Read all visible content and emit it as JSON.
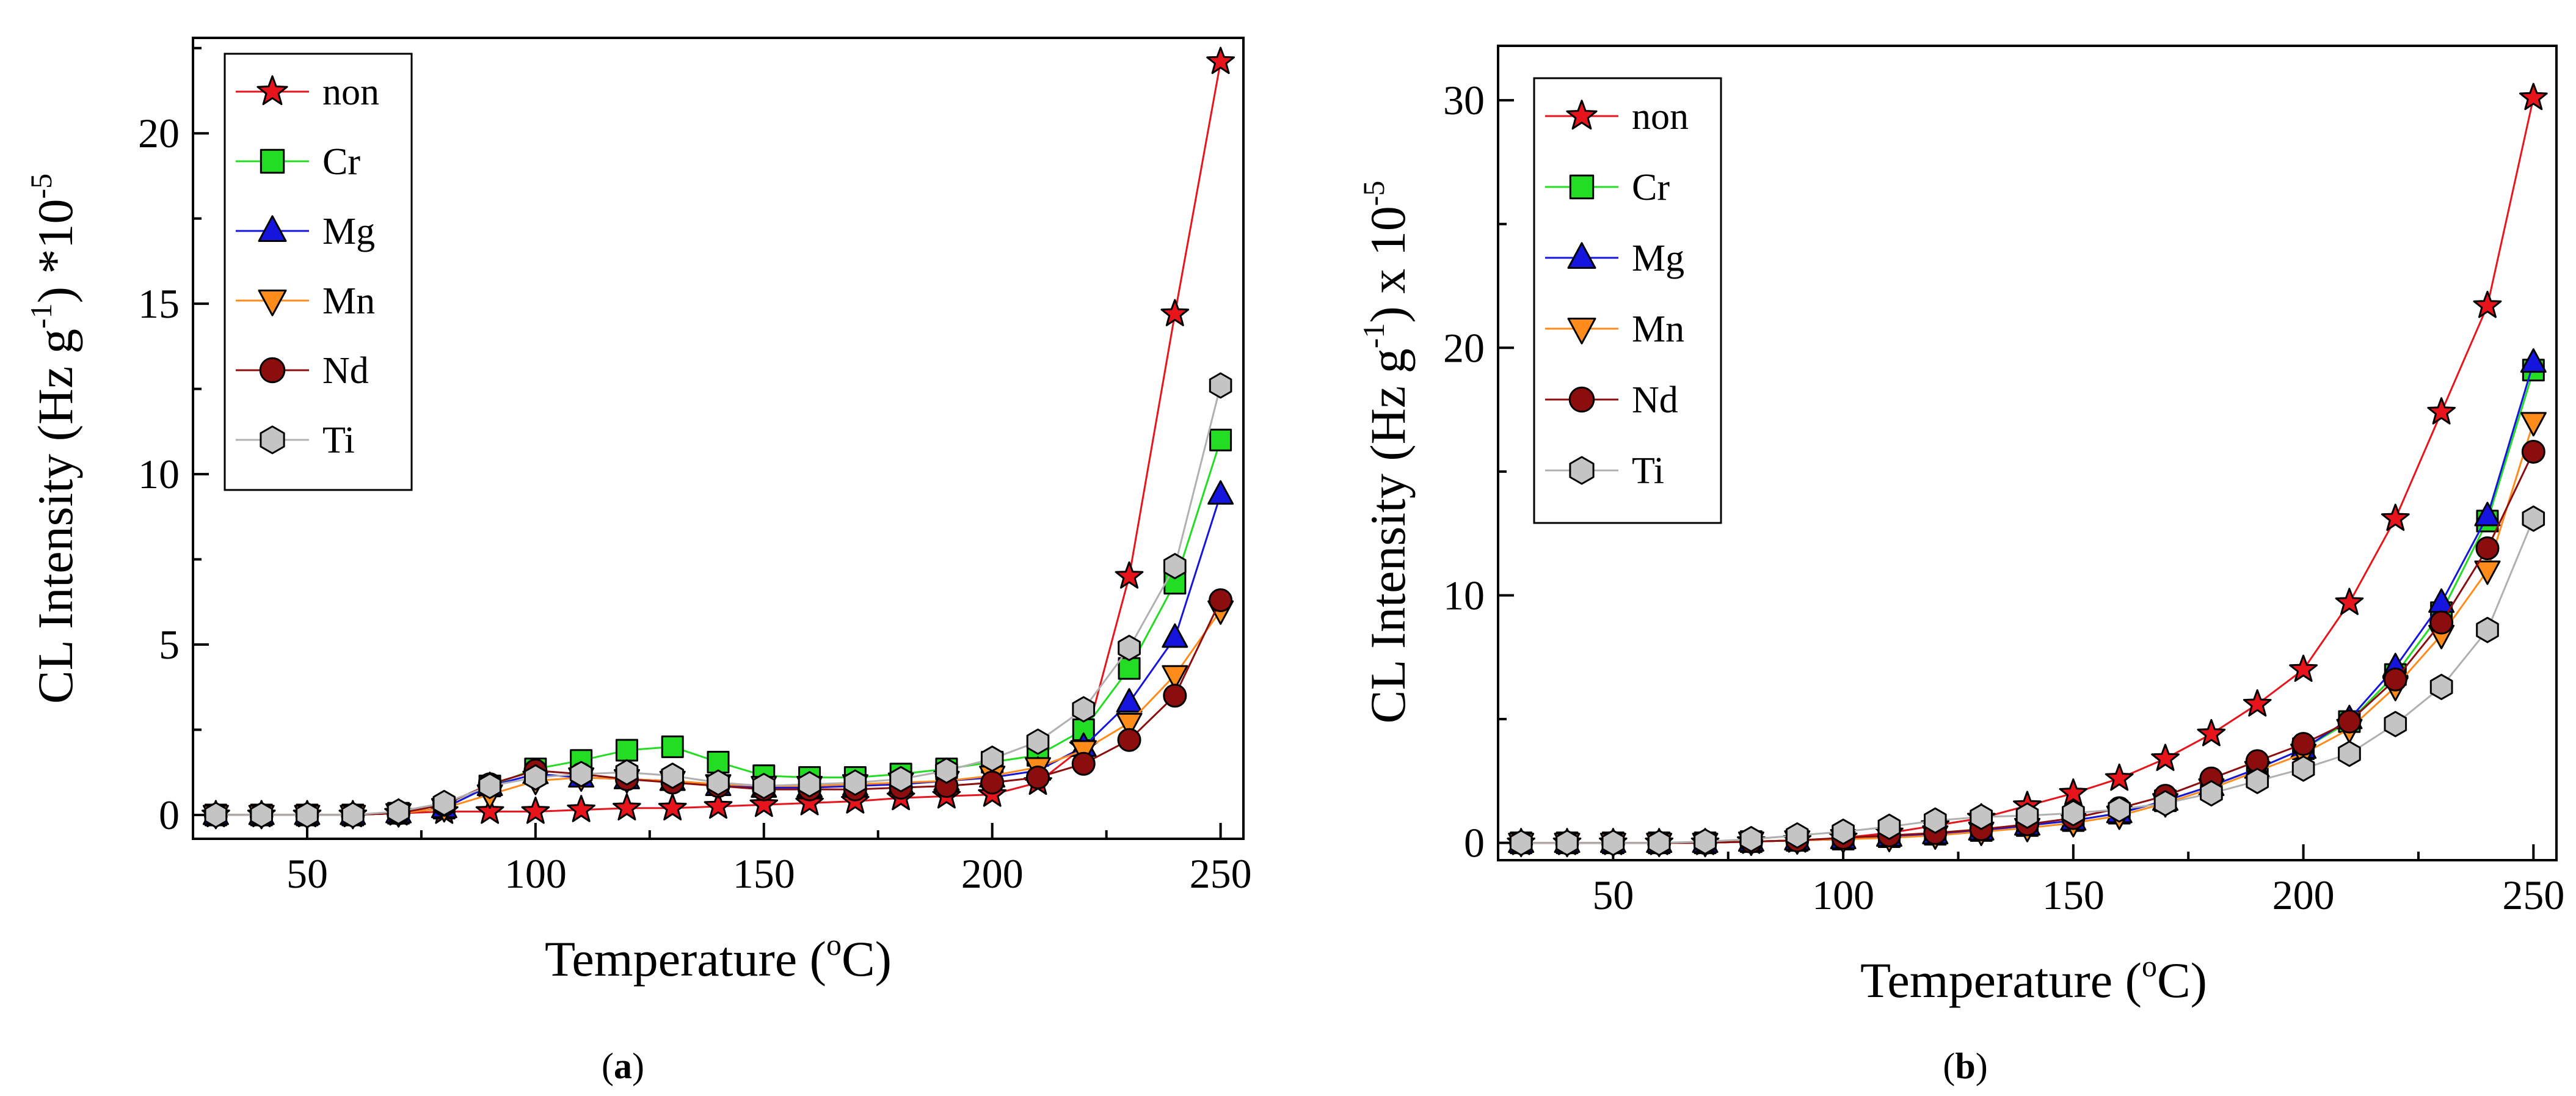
{
  "chart_data": [
    {
      "type": "line",
      "panel_label": "a",
      "xlabel": "Temperature",
      "xlabel_unit": "C",
      "xlabel_sup": "o",
      "ylabel": "CL Intensity (Hz g",
      "ylabel_sup": "-1",
      "ylabel_suffix": ") *10",
      "ylabel_exp": "-5",
      "xlim": [
        25,
        255
      ],
      "ylim": [
        -0.7,
        22.8
      ],
      "xticks": [
        50,
        100,
        150,
        200,
        250
      ],
      "yticks": [
        0,
        5,
        10,
        15,
        20
      ],
      "grid": false,
      "legend_position": "top-left",
      "x": [
        30,
        40,
        50,
        60,
        70,
        80,
        90,
        100,
        110,
        120,
        130,
        140,
        150,
        160,
        170,
        180,
        190,
        200,
        210,
        220,
        230,
        240,
        250
      ],
      "series": [
        {
          "name": "non",
          "marker": "star",
          "color": "#e8141b",
          "line_color": "#e8141b",
          "values": [
            0,
            0,
            0,
            0,
            0.05,
            0.1,
            0.1,
            0.1,
            0.15,
            0.2,
            0.2,
            0.25,
            0.3,
            0.35,
            0.4,
            0.5,
            0.55,
            0.6,
            0.95,
            2.0,
            7.0,
            14.7,
            22.1
          ]
        },
        {
          "name": "Cr",
          "marker": "square",
          "color": "#22dd22",
          "line_color": "#22dd22",
          "values": [
            0,
            0,
            0,
            0,
            0.05,
            0.2,
            0.85,
            1.35,
            1.6,
            1.9,
            2.0,
            1.55,
            1.15,
            1.1,
            1.1,
            1.2,
            1.35,
            1.55,
            1.75,
            2.5,
            4.3,
            6.8,
            11.0
          ]
        },
        {
          "name": "Mg",
          "marker": "triangle-up",
          "color": "#1515dd",
          "line_color": "#1515dd",
          "values": [
            0,
            0,
            0,
            0,
            0.05,
            0.2,
            0.85,
            1.2,
            1.1,
            1.05,
            1.0,
            0.85,
            0.8,
            0.8,
            0.85,
            0.9,
            1.0,
            1.1,
            1.3,
            2.0,
            3.3,
            5.2,
            9.4
          ]
        },
        {
          "name": "Mn",
          "marker": "triangle-down",
          "color": "#ff8c1a",
          "line_color": "#ff8c1a",
          "values": [
            0,
            0,
            0,
            0,
            0.05,
            0.2,
            0.6,
            1.0,
            1.1,
            1.05,
            1.0,
            0.9,
            0.85,
            0.85,
            0.9,
            0.95,
            1.0,
            1.15,
            1.4,
            1.9,
            2.7,
            4.1,
            6.0
          ]
        },
        {
          "name": "Nd",
          "marker": "circle",
          "color": "#8b0d0d",
          "line_color": "#8b0d0d",
          "values": [
            0,
            0,
            0,
            0,
            0.05,
            0.3,
            0.9,
            1.3,
            1.2,
            1.05,
            0.95,
            0.85,
            0.75,
            0.75,
            0.75,
            0.8,
            0.85,
            0.95,
            1.1,
            1.5,
            2.2,
            3.5,
            6.3
          ]
        },
        {
          "name": "Ti",
          "marker": "hexagon",
          "color": "#c4c4c4",
          "line_color": "#b0b0b0",
          "values": [
            0,
            0,
            0,
            0,
            0.1,
            0.35,
            0.85,
            1.1,
            1.2,
            1.25,
            1.15,
            0.95,
            0.85,
            0.9,
            0.95,
            1.05,
            1.3,
            1.65,
            2.15,
            3.1,
            4.9,
            7.3,
            12.6
          ]
        }
      ]
    },
    {
      "type": "line",
      "panel_label": "b",
      "xlabel": "Temperature",
      "xlabel_unit": "C",
      "xlabel_sup": "o",
      "ylabel": "CL Intensity (Hz g",
      "ylabel_sup": "-1",
      "ylabel_suffix": ") x 10",
      "ylabel_exp": "-5",
      "xlim": [
        25,
        255
      ],
      "ylim": [
        -0.7,
        32.2
      ],
      "xticks": [
        50,
        100,
        150,
        200,
        250
      ],
      "yticks": [
        0,
        10,
        20,
        30
      ],
      "grid": false,
      "legend_position": "top-left",
      "x": [
        30,
        40,
        50,
        60,
        70,
        80,
        90,
        100,
        110,
        120,
        130,
        140,
        150,
        160,
        170,
        180,
        190,
        200,
        210,
        220,
        230,
        240,
        250
      ],
      "series": [
        {
          "name": "non",
          "marker": "star",
          "color": "#e8141b",
          "line_color": "#e8141b",
          "values": [
            0,
            0,
            0,
            0,
            0,
            0.05,
            0.1,
            0.2,
            0.4,
            0.7,
            1.0,
            1.5,
            2.0,
            2.6,
            3.4,
            4.4,
            5.6,
            7.0,
            9.7,
            13.1,
            17.4,
            21.7,
            30.1
          ]
        },
        {
          "name": "Cr",
          "marker": "square",
          "color": "#22dd22",
          "line_color": "#22dd22",
          "values": [
            0,
            0,
            0,
            0,
            0,
            0.05,
            0.1,
            0.15,
            0.25,
            0.35,
            0.5,
            0.7,
            0.9,
            1.2,
            1.7,
            2.3,
            3.0,
            3.8,
            4.9,
            6.8,
            9.3,
            13.0,
            19.1
          ]
        },
        {
          "name": "Mg",
          "marker": "triangle-up",
          "color": "#1515dd",
          "line_color": "#1515dd",
          "values": [
            0,
            0,
            0,
            0,
            0,
            0.05,
            0.1,
            0.15,
            0.25,
            0.35,
            0.5,
            0.7,
            0.9,
            1.2,
            1.7,
            2.3,
            3.0,
            3.8,
            5.0,
            7.1,
            9.7,
            13.2,
            19.4
          ]
        },
        {
          "name": "Mn",
          "marker": "triangle-down",
          "color": "#ff8c1a",
          "line_color": "#ff8c1a",
          "values": [
            0,
            0,
            0,
            0,
            0,
            0.05,
            0.1,
            0.15,
            0.2,
            0.3,
            0.45,
            0.6,
            0.8,
            1.1,
            1.6,
            2.2,
            2.9,
            3.6,
            4.6,
            6.3,
            8.4,
            11.0,
            17.0
          ]
        },
        {
          "name": "Nd",
          "marker": "circle",
          "color": "#8b0d0d",
          "line_color": "#8b0d0d",
          "values": [
            0,
            0,
            0,
            0,
            0,
            0.05,
            0.1,
            0.2,
            0.3,
            0.4,
            0.55,
            0.75,
            1.0,
            1.4,
            1.9,
            2.6,
            3.3,
            4.0,
            4.9,
            6.6,
            8.9,
            11.9,
            15.8
          ]
        },
        {
          "name": "Ti",
          "marker": "hexagon",
          "color": "#c4c4c4",
          "line_color": "#b0b0b0",
          "values": [
            0,
            0,
            0,
            0,
            0.05,
            0.15,
            0.3,
            0.45,
            0.65,
            0.9,
            1.05,
            1.1,
            1.2,
            1.35,
            1.6,
            2.0,
            2.5,
            3.0,
            3.6,
            4.8,
            6.3,
            8.6,
            13.1
          ]
        }
      ]
    }
  ]
}
